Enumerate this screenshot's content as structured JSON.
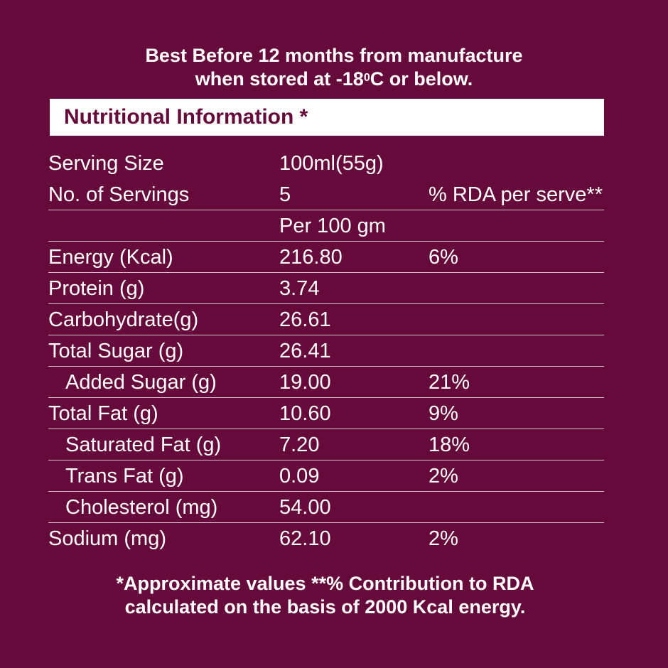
{
  "header": {
    "line1": "Best Before 12 months from manufacture",
    "line2_prefix": "when stored at -18",
    "line2_sup": "0",
    "line2_suffix": "C or below."
  },
  "title": "Nutritional Information *",
  "serving": {
    "size_label": "Serving Size",
    "size_value": "100ml(55g)",
    "count_label": "No. of Servings",
    "count_value": "5",
    "rda_header": "% RDA per serve**",
    "per_label": "Per 100 gm"
  },
  "nutrients": [
    {
      "name": "Energy (Kcal)",
      "value": "216.80",
      "rda": "6%"
    },
    {
      "name": "Protein (g)",
      "value": "3.74",
      "rda": ""
    },
    {
      "name": "Carbohydrate(g)",
      "value": "26.61",
      "rda": ""
    },
    {
      "name": "Total Sugar (g)",
      "value": "26.41",
      "rda": ""
    },
    {
      "name": "Added Sugar (g)",
      "value": "19.00",
      "rda": "21%"
    },
    {
      "name": "Total Fat (g)",
      "value": "10.60",
      "rda": "9%"
    },
    {
      "name": "Saturated Fat (g)",
      "value": "7.20",
      "rda": "18%"
    },
    {
      "name": "Trans Fat (g)",
      "value": "0.09",
      "rda": "2%"
    },
    {
      "name": "Cholesterol (mg)",
      "value": "54.00",
      "rda": ""
    },
    {
      "name": "Sodium (mg)",
      "value": "62.10",
      "rda": "2%"
    }
  ],
  "footer": {
    "line1": "*Approximate values **% Contribution to RDA",
    "line2": "calculated on the basis of 2000 Kcal energy."
  },
  "colors": {
    "background": "#650a3a",
    "title_bar": "#ffffff",
    "text": "#ffffff"
  }
}
